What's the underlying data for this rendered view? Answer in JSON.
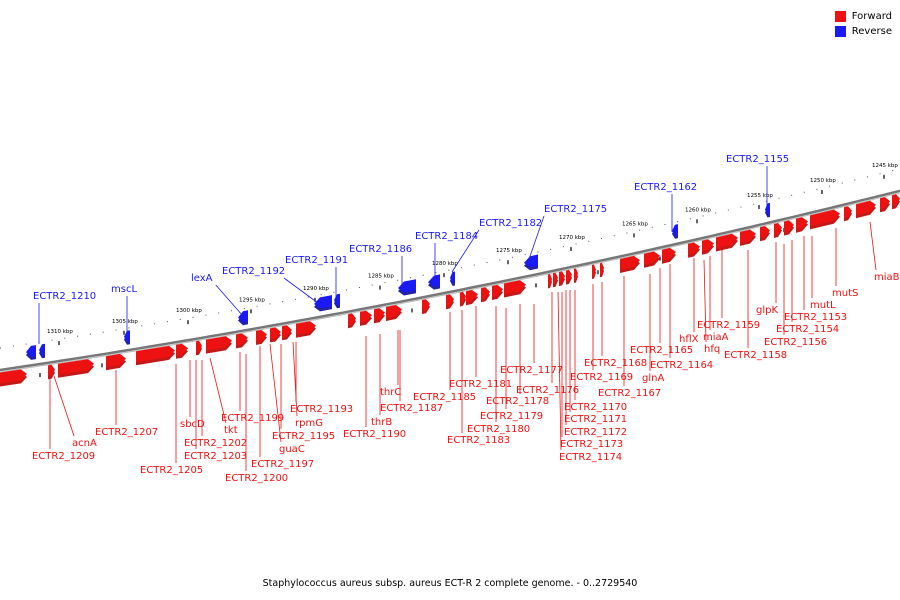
{
  "colors": {
    "forward": "#ee1111",
    "reverse": "#1a1af5",
    "backbone": "#888888"
  },
  "legend": {
    "forward": "Forward",
    "reverse": "Reverse"
  },
  "caption": "Staphylococcus aureus subsp. aureus ECT-R 2 complete genome. - 0..2729540",
  "ticks": [
    "1245 kbp",
    "1250 kbp",
    "1255 kbp",
    "1260 kbp",
    "1265 kbp",
    "1270 kbp",
    "1275 kbp",
    "1280 kbp",
    "1285 kbp",
    "1290 kbp",
    "1295 kbp",
    "1300 kbp",
    "1305 kbp",
    "1310 kbp"
  ],
  "reverse_labels": [
    "ECTR2_1155",
    "ECTR2_1162",
    "ECTR2_1175",
    "ECTR2_1182",
    "ECTR2_1184",
    "ECTR2_1186",
    "ECTR2_1191",
    "ECTR2_1192",
    "lexA",
    "mscL",
    "ECTR2_1210"
  ],
  "forward_labels": [
    "miaB",
    "mutS",
    "ECTR2_1153",
    "mutL",
    "ECTR2_1154",
    "glpK",
    "ECTR2_1156",
    "ECTR2_1159",
    "ECTR2_1158",
    "miaA",
    "hflX",
    "hfq",
    "ECTR2_1165",
    "ECTR2_1164",
    "glnA",
    "ECTR2_1167",
    "ECTR2_1168",
    "ECTR2_1169",
    "ECTR2_1170",
    "ECTR2_1171",
    "ECTR2_1172",
    "ECTR2_1173",
    "ECTR2_1174",
    "ECTR2_1176",
    "ECTR2_1177",
    "ECTR2_1178",
    "ECTR2_1179",
    "ECTR2_1180",
    "ECTR2_1181",
    "ECTR2_1183",
    "ECTR2_1185",
    "thrC",
    "ECTR2_1187",
    "thrB",
    "ECTR2_1190",
    "ECTR2_1193",
    "rpmG",
    "ECTR2_1195",
    "guaC",
    "ECTR2_1197",
    "ECTR2_1199",
    "ECTR2_1200",
    "tkt",
    "ECTR2_1202",
    "ECTR2_1203",
    "sbcD",
    "ECTR2_1205",
    "ECTR2_1207",
    "acnA",
    "ECTR2_1209"
  ]
}
